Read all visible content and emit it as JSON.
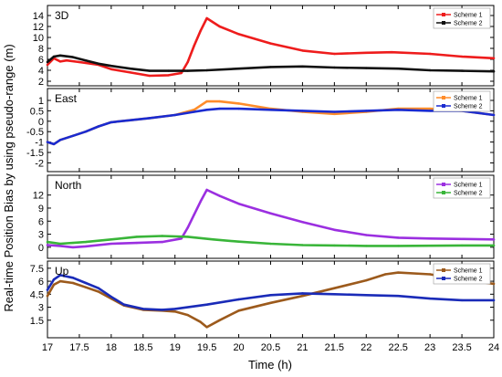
{
  "figure": {
    "ylabel": "Real-time Position Bias by using pseudo-range (m)",
    "xlabel": "Time (h)"
  },
  "colors": {
    "scheme1_3d": "#ee1c1c",
    "scheme2_3d": "#111111",
    "scheme1_east": "#ff8c2a",
    "scheme2_east": "#1a2bd0",
    "scheme1_north": "#9b2fe0",
    "scheme2_north": "#39b539",
    "scheme1_up": "#9c5a1c",
    "scheme2_up": "#1a2bb8"
  },
  "chart_data": [
    {
      "type": "line",
      "title": "3D",
      "xlim": [
        17,
        24
      ],
      "ylim": [
        2,
        15
      ],
      "x_ticks": [
        "17",
        "17.5",
        "18",
        "18.5",
        "19",
        "19.5",
        "20",
        "20.5",
        "21",
        "21.5",
        "22",
        "22.5",
        "23",
        "23.5",
        "24"
      ],
      "y_ticks": [
        "2",
        "4",
        "6",
        "8",
        "10",
        "12",
        "14"
      ],
      "legend": "top-right",
      "series": [
        {
          "name": "Scheme 1",
          "color_key": "scheme1_3d",
          "x": [
            17.0,
            17.1,
            17.2,
            17.3,
            17.5,
            17.8,
            18.0,
            18.3,
            18.6,
            18.9,
            19.1,
            19.2,
            19.3,
            19.4,
            19.5,
            19.7,
            20.0,
            20.5,
            21.0,
            21.5,
            22.0,
            22.4,
            23.0,
            23.5,
            24.0
          ],
          "y": [
            5.0,
            6.2,
            5.6,
            5.8,
            5.5,
            5.0,
            4.2,
            3.6,
            3.0,
            3.1,
            3.5,
            5.5,
            8.5,
            11.2,
            13.5,
            12.0,
            10.6,
            8.9,
            7.6,
            7.0,
            7.2,
            7.3,
            7.0,
            6.5,
            6.2
          ]
        },
        {
          "name": "Scheme 2",
          "color_key": "scheme2_3d",
          "x": [
            17.0,
            17.1,
            17.2,
            17.4,
            17.6,
            17.8,
            18.0,
            18.3,
            18.6,
            18.9,
            19.2,
            19.5,
            20.0,
            20.5,
            21.0,
            21.5,
            22.0,
            22.5,
            23.0,
            23.5,
            24.0
          ],
          "y": [
            5.5,
            6.5,
            6.7,
            6.4,
            5.8,
            5.2,
            4.8,
            4.3,
            3.9,
            3.9,
            3.9,
            4.0,
            4.3,
            4.6,
            4.7,
            4.5,
            4.4,
            4.3,
            4.0,
            3.9,
            3.8
          ]
        }
      ]
    },
    {
      "type": "line",
      "title": "East",
      "xlim": [
        17,
        24
      ],
      "ylim": [
        -2.2,
        1.35
      ],
      "x_ticks": [
        "17",
        "17.5",
        "18",
        "18.5",
        "19",
        "19.5",
        "20",
        "20.5",
        "21",
        "21.5",
        "22",
        "22.5",
        "23",
        "23.5",
        "24"
      ],
      "y_ticks": [
        "-2",
        "-1.5",
        "-1",
        "-0.5",
        "0",
        "0.5",
        "1"
      ],
      "legend": "top-right",
      "series": [
        {
          "name": "Scheme 1",
          "color_key": "scheme1_east",
          "x": [
            17.0,
            17.1,
            17.2,
            17.4,
            17.6,
            17.8,
            18.0,
            18.3,
            18.6,
            19.0,
            19.3,
            19.5,
            19.7,
            20.0,
            20.5,
            21.0,
            21.5,
            22.0,
            22.5,
            23.0,
            23.5,
            24.0
          ],
          "y": [
            -1.0,
            -1.1,
            -0.9,
            -0.7,
            -0.5,
            -0.25,
            -0.05,
            0.05,
            0.15,
            0.3,
            0.55,
            0.95,
            0.95,
            0.85,
            0.6,
            0.45,
            0.35,
            0.45,
            0.6,
            0.6,
            0.5,
            0.3
          ]
        },
        {
          "name": "Scheme 2",
          "color_key": "scheme2_east",
          "x": [
            17.0,
            17.1,
            17.2,
            17.4,
            17.6,
            17.8,
            18.0,
            18.3,
            18.6,
            19.0,
            19.3,
            19.5,
            19.7,
            20.0,
            20.5,
            21.0,
            21.5,
            22.0,
            22.5,
            23.0,
            23.5,
            24.0
          ],
          "y": [
            -1.0,
            -1.1,
            -0.9,
            -0.7,
            -0.5,
            -0.25,
            -0.05,
            0.05,
            0.15,
            0.3,
            0.45,
            0.55,
            0.6,
            0.6,
            0.55,
            0.5,
            0.45,
            0.5,
            0.55,
            0.5,
            0.5,
            0.3
          ]
        }
      ]
    },
    {
      "type": "line",
      "title": "North",
      "xlim": [
        17,
        24
      ],
      "ylim": [
        -1.5,
        15.5
      ],
      "x_ticks": [
        "17",
        "17.5",
        "18",
        "18.5",
        "19",
        "19.5",
        "20",
        "20.5",
        "21",
        "21.5",
        "22",
        "22.5",
        "23",
        "23.5",
        "24"
      ],
      "y_ticks": [
        "0",
        "3",
        "6",
        "9",
        "12"
      ],
      "legend": "top-right",
      "series": [
        {
          "name": "Scheme 1",
          "color_key": "scheme1_north",
          "x": [
            17.0,
            17.2,
            17.4,
            17.6,
            18.0,
            18.4,
            18.8,
            19.1,
            19.2,
            19.3,
            19.4,
            19.5,
            19.7,
            20.0,
            20.5,
            21.0,
            21.5,
            22.0,
            22.5,
            23.0,
            23.5,
            24.0
          ],
          "y": [
            0.5,
            0.3,
            0.0,
            0.2,
            0.8,
            1.0,
            1.2,
            2.0,
            4.5,
            7.5,
            10.5,
            13.2,
            11.8,
            10.0,
            7.8,
            5.8,
            4.0,
            2.8,
            2.2,
            2.0,
            1.9,
            1.8
          ]
        },
        {
          "name": "Scheme 2",
          "color_key": "scheme2_north",
          "x": [
            17.0,
            17.2,
            17.4,
            17.6,
            18.0,
            18.4,
            18.8,
            19.2,
            19.6,
            20.0,
            20.5,
            21.0,
            21.5,
            22.0,
            22.5,
            23.0,
            23.5,
            24.0
          ],
          "y": [
            1.2,
            0.8,
            1.0,
            1.2,
            1.8,
            2.4,
            2.6,
            2.4,
            1.8,
            1.3,
            0.8,
            0.5,
            0.4,
            0.3,
            0.3,
            0.35,
            0.4,
            0.4
          ]
        }
      ]
    },
    {
      "type": "line",
      "title": "Up",
      "xlim": [
        17,
        24
      ],
      "ylim": [
        0,
        7.8
      ],
      "x_ticks": [
        "17",
        "17.5",
        "18",
        "18.5",
        "19",
        "19.5",
        "20",
        "20.5",
        "21",
        "21.5",
        "22",
        "22.5",
        "23",
        "23.5",
        "24"
      ],
      "y_ticks": [
        "1.5",
        "3",
        "4.5",
        "6",
        "7.5"
      ],
      "legend": "top-right",
      "series": [
        {
          "name": "Scheme 1",
          "color_key": "scheme1_up",
          "x": [
            17.0,
            17.1,
            17.2,
            17.4,
            17.6,
            17.8,
            18.0,
            18.2,
            18.5,
            18.8,
            19.0,
            19.2,
            19.4,
            19.5,
            19.7,
            20.0,
            20.5,
            21.0,
            21.5,
            22.0,
            22.3,
            22.5,
            23.0,
            23.5,
            24.0
          ],
          "y": [
            4.3,
            5.6,
            6.0,
            5.8,
            5.3,
            4.8,
            4.0,
            3.2,
            2.7,
            2.6,
            2.5,
            2.1,
            1.3,
            0.7,
            1.5,
            2.6,
            3.5,
            4.3,
            5.2,
            6.1,
            6.8,
            7.0,
            6.8,
            6.2,
            5.7
          ]
        },
        {
          "name": "Scheme 2",
          "color_key": "scheme2_up",
          "x": [
            17.0,
            17.1,
            17.2,
            17.4,
            17.6,
            17.8,
            18.0,
            18.2,
            18.5,
            18.8,
            19.0,
            19.5,
            20.0,
            20.5,
            21.0,
            21.5,
            22.0,
            22.5,
            23.0,
            23.5,
            24.0
          ],
          "y": [
            5.0,
            6.2,
            6.7,
            6.4,
            5.8,
            5.2,
            4.2,
            3.3,
            2.8,
            2.7,
            2.8,
            3.3,
            3.9,
            4.4,
            4.6,
            4.5,
            4.4,
            4.3,
            4.0,
            3.8,
            3.8
          ]
        }
      ]
    }
  ]
}
